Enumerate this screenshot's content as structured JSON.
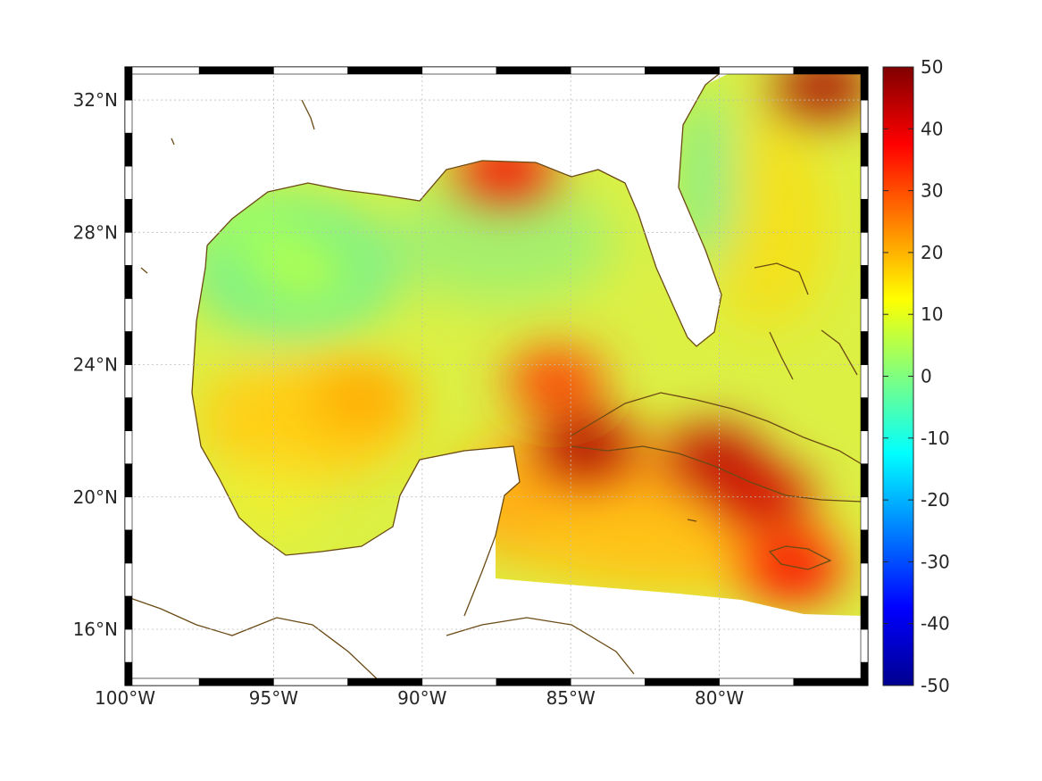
{
  "map": {
    "lon_range": [
      -100,
      -75
    ],
    "lat_range": [
      14.3,
      33
    ],
    "grid": true,
    "colormap": "jet",
    "land_color": "#ffffff",
    "coastline_color": "#6b4a14",
    "lon_ticks": [
      {
        "value": -100,
        "label": "100°W"
      },
      {
        "value": -95,
        "label": "95°W"
      },
      {
        "value": -90,
        "label": "90°W"
      },
      {
        "value": -85,
        "label": "85°W"
      },
      {
        "value": -80,
        "label": "80°W"
      }
    ],
    "lat_ticks": [
      {
        "value": 16,
        "label": "16°N"
      },
      {
        "value": 20,
        "label": "20°N"
      },
      {
        "value": 24,
        "label": "24°N"
      },
      {
        "value": 28,
        "label": "28°N"
      },
      {
        "value": 32,
        "label": "32°N"
      }
    ],
    "hotspots": [
      {
        "lon": -84.5,
        "lat": 21.5,
        "value": 46
      },
      {
        "lon": -80.2,
        "lat": 21.2,
        "value": 44
      },
      {
        "lon": -78.5,
        "lat": 20.0,
        "value": 42
      },
      {
        "lon": -76.5,
        "lat": 32.4,
        "value": 46
      },
      {
        "lon": -87.2,
        "lat": 29.9,
        "value": 38
      },
      {
        "lon": -85.5,
        "lat": 23.5,
        "value": 32
      },
      {
        "lon": -77.5,
        "lat": 17.8,
        "value": 38
      },
      {
        "lon": -92.0,
        "lat": 23.0,
        "value": 21
      },
      {
        "lon": -95.5,
        "lat": 28.0,
        "value": 3
      },
      {
        "lon": -94.0,
        "lat": 26.8,
        "value": 5
      }
    ]
  },
  "colorbar": {
    "min": -50,
    "max": 50,
    "ticks": [
      {
        "value": 50,
        "label": "50"
      },
      {
        "value": 40,
        "label": "40"
      },
      {
        "value": 30,
        "label": "30"
      },
      {
        "value": 20,
        "label": "20"
      },
      {
        "value": 10,
        "label": "10"
      },
      {
        "value": 0,
        "label": "0"
      },
      {
        "value": -10,
        "label": "-10"
      },
      {
        "value": -20,
        "label": "-20"
      },
      {
        "value": -30,
        "label": "-30"
      },
      {
        "value": -40,
        "label": "-40"
      },
      {
        "value": -50,
        "label": "-50"
      }
    ]
  }
}
